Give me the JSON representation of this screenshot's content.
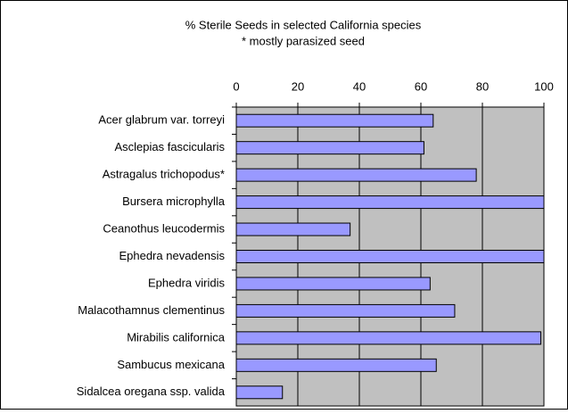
{
  "chart_data": {
    "type": "bar",
    "orientation": "horizontal",
    "title": "% Sterile Seeds in selected California species",
    "subtitle": "* mostly parasized seed",
    "categories": [
      "Acer glabrum var. torreyi",
      "Asclepias fascicularis",
      "Astragalus trichopodus*",
      "Bursera microphylla",
      "Ceanothus leucodermis",
      "Ephedra nevadensis",
      "Ephedra viridis",
      "Malacothamnus clementinus",
      "Mirabilis californica",
      "Sambucus mexicana",
      "Sidalcea oregana ssp. valida"
    ],
    "values": [
      64,
      61,
      78,
      100,
      37,
      100,
      63,
      71,
      99,
      65,
      15
    ],
    "color": "#9999ff",
    "xlim": [
      0,
      100
    ],
    "xticks": [
      0,
      20,
      40,
      60,
      80,
      100
    ],
    "grid": true
  }
}
